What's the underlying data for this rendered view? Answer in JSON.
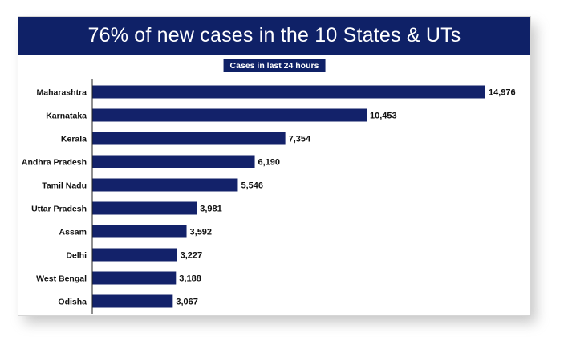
{
  "header": {
    "title": "76% of new cases in the 10 States & UTs",
    "subtitle": "Cases in last 24 hours"
  },
  "colors": {
    "banner": "#0f2167",
    "bar": "#13226a",
    "axis": "#222222"
  },
  "chart_data": {
    "type": "bar",
    "orientation": "horizontal",
    "title": "76% of new cases in the 10 States & UTs",
    "subtitle": "Cases in last 24 hours",
    "categories": [
      "Maharashtra",
      "Karnataka",
      "Kerala",
      "Andhra Pradesh",
      "Tamil Nadu",
      "Uttar Pradesh",
      "Assam",
      "Delhi",
      "West Bengal",
      "Odisha"
    ],
    "values": [
      14976,
      10453,
      7354,
      6190,
      5546,
      3981,
      3592,
      3227,
      3188,
      3067
    ],
    "value_labels": [
      "14,976",
      "10,453",
      "7,354",
      "6,190",
      "5,546",
      "3,981",
      "3,592",
      "3,227",
      "3,188",
      "3,067"
    ],
    "xlabel": "",
    "ylabel": "",
    "xlim": [
      0,
      14976
    ],
    "grid": false,
    "legend": "none"
  }
}
